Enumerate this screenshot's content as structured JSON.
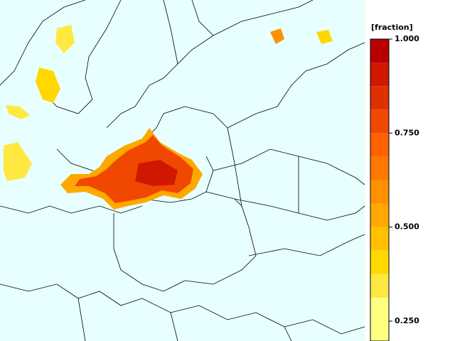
{
  "legend": {
    "label": "[fraction]",
    "ticks": [
      {
        "value": 1.0,
        "label": "1.000"
      },
      {
        "value": 0.75,
        "label": "0.750"
      },
      {
        "value": 0.5,
        "label": "0.500"
      },
      {
        "value": 0.25,
        "label": "0.250"
      }
    ],
    "levels": [
      0.1875,
      0.3125,
      0.375,
      0.4375,
      0.5,
      0.5625,
      0.625,
      0.6875,
      0.75,
      0.8125,
      0.875,
      0.9375,
      1.0
    ],
    "colors": [
      "#ffff80",
      "#ffe840",
      "#ffd800",
      "#ffc000",
      "#ffa800",
      "#ff9000",
      "#ff7800",
      "#ff6000",
      "#f04800",
      "#e03000",
      "#d01800",
      "#b80000"
    ]
  }
}
